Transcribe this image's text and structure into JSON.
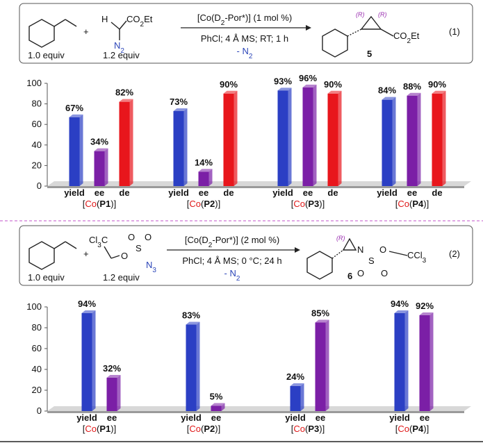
{
  "scheme_1": {
    "styrene_equiv": "1.0 equiv",
    "plus": "+",
    "h": "H",
    "ester": "CO2Et",
    "n2": "N2",
    "diazo_equiv": "1.2 equiv",
    "catalyst": "[Co(D2-Por*)] (1 mol %)",
    "conditions": "PhCl; 4 Å MS; RT; 1 h",
    "byproduct": "- N2",
    "stereo": [
      "(R)",
      "(R)"
    ],
    "product_ester": "CO2Et",
    "compound": "5",
    "equation": "(1)"
  },
  "scheme_2": {
    "styrene_equiv": "1.0 equiv",
    "plus": "+",
    "cl3c": "Cl3C",
    "atoms": [
      "O",
      "O",
      "S",
      "O",
      "N3"
    ],
    "azide_equiv": "1.2 equiv",
    "catalyst": "[Co(D2-Por*)] (2 mol %)",
    "conditions": "PhCl; 4 Å MS; 0 °C; 24 h",
    "byproduct": "- N2",
    "stereo": "(R)",
    "product_atoms": [
      "N",
      "S",
      "O",
      "O",
      "O",
      "CCl3"
    ],
    "compound": "6",
    "equation": "(2)"
  },
  "chart_data": [
    {
      "type": "bar",
      "categories": [
        "[Co(P1)]",
        "[Co(P2)]",
        "[Co(P3)]",
        "[Co(P4)]"
      ],
      "series": [
        {
          "name": "yield",
          "color": "#2b3fc4",
          "values": [
            67,
            73,
            93,
            84
          ],
          "value_labels": [
            "67%",
            "73%",
            "93%",
            "84%"
          ]
        },
        {
          "name": "ee",
          "color": "#7b1fa6",
          "values": [
            34,
            14,
            96,
            88
          ],
          "value_labels": [
            "34%",
            "14%",
            "96%",
            "88%"
          ]
        },
        {
          "name": "de",
          "color": "#e8161c",
          "values": [
            82,
            90,
            90,
            90
          ],
          "value_labels": [
            "82%",
            "90%",
            "90%",
            "90%"
          ]
        }
      ],
      "ylim": [
        0,
        100
      ],
      "yticks": [
        0,
        20,
        40,
        60,
        80,
        100
      ]
    },
    {
      "type": "bar",
      "categories": [
        "[Co(P1)]",
        "[Co(P2)]",
        "[Co(P3)]",
        "[Co(P4)]"
      ],
      "series": [
        {
          "name": "yield",
          "color": "#2b3fc4",
          "values": [
            94,
            83,
            24,
            94
          ],
          "value_labels": [
            "94%",
            "83%",
            "24%",
            "94%"
          ]
        },
        {
          "name": "ee",
          "color": "#7b1fa6",
          "values": [
            32,
            5,
            85,
            92
          ],
          "value_labels": [
            "32%",
            "5%",
            "85%",
            "92%"
          ]
        }
      ],
      "ylim": [
        0,
        100
      ],
      "yticks": [
        0,
        20,
        40,
        60,
        80,
        100
      ]
    }
  ]
}
